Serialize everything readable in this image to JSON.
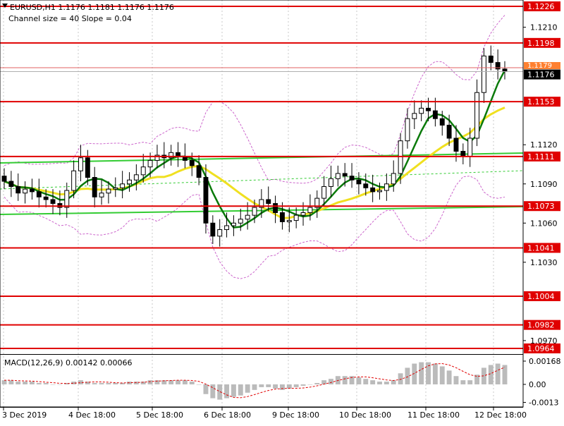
{
  "chart_data": {
    "type": "candlestick",
    "symbol_header": "EURUSD,H1  1.1176 1.1181 1.1176 1.1176",
    "indicator_header": "Channel size = 40 Slope = 0.04",
    "macd_header": "MACD(12,26,9) 0.00142 0.00066",
    "price_axis": {
      "ylim": [
        1.0964,
        1.1226
      ],
      "tick_labels": [
        "1.1210",
        "1.1120",
        "1.1090",
        "1.1060",
        "1.1030",
        "1.0970"
      ],
      "tick_values": [
        1.121,
        1.112,
        1.109,
        1.106,
        1.103,
        1.097
      ]
    },
    "macd_axis": {
      "ylim": [
        -0.0013,
        0.00168
      ],
      "tick_labels": [
        "0.00168",
        "0.00",
        "-0.0013"
      ],
      "tick_values": [
        0.00168,
        0.0,
        -0.0013
      ]
    },
    "time_axis": {
      "labels": [
        "3 Dec 2019",
        "4 Dec 18:00",
        "5 Dec 18:00",
        "6 Dec 18:00",
        "9 Dec 18:00",
        "10 Dec 18:00",
        "11 Dec 18:00",
        "12 Dec 18:00"
      ]
    },
    "levels": [
      {
        "value": 1.1226,
        "label": "1.1226"
      },
      {
        "value": 1.1198,
        "label": "1.1198"
      },
      {
        "value": 1.1153,
        "label": "1.1153"
      },
      {
        "value": 1.1111,
        "label": "1.1111"
      },
      {
        "value": 1.1073,
        "label": "1.1073"
      },
      {
        "value": 1.1041,
        "label": "1.1041"
      },
      {
        "value": 1.1004,
        "label": "1.1004"
      },
      {
        "value": 1.0982,
        "label": "1.0982"
      },
      {
        "value": 1.0964,
        "label": "1.0964"
      }
    ],
    "current_price": {
      "value": 1.1176,
      "label": "1.1176"
    },
    "ask_price": {
      "value": 1.1179,
      "label": "1.1179"
    },
    "close_path": [
      1.1092,
      1.1088,
      1.1083,
      1.1086,
      1.1084,
      1.108,
      1.1078,
      1.1075,
      1.1072,
      1.1085,
      1.11,
      1.111,
      1.1095,
      1.108,
      1.1083,
      1.1086,
      1.1087,
      1.109,
      1.1093,
      1.1097,
      1.1103,
      1.1108,
      1.1112,
      1.111,
      1.1114,
      1.1111,
      1.1108,
      1.1104,
      1.1095,
      1.106,
      1.105,
      1.1055,
      1.1058,
      1.106,
      1.1063,
      1.1066,
      1.1072,
      1.1078,
      1.1075,
      1.1068,
      1.1061,
      1.1062,
      1.1066,
      1.1068,
      1.1072,
      1.1079,
      1.1088,
      1.1094,
      1.1098,
      1.1096,
      1.1093,
      1.109,
      1.1087,
      1.1084,
      1.1085,
      1.109,
      1.1098,
      1.1123,
      1.114,
      1.1144,
      1.1148,
      1.1146,
      1.114,
      1.1135,
      1.1125,
      1.1115,
      1.1111,
      1.1125,
      1.116,
      1.1188,
      1.1183,
      1.1178,
      1.1176
    ],
    "series": [
      {
        "name": "",
        "color": "#0a7a0a",
        "kind": "moving-average"
      },
      {
        "name": "",
        "color": "#f0e020",
        "kind": "moving-average"
      },
      {
        "name": "",
        "color": "#cc66cc",
        "kind": "bollinger-band"
      },
      {
        "name": "",
        "color": "#33cc33",
        "kind": "channel-line"
      }
    ],
    "macd_histogram": [
      0.0003,
      0.0003,
      0.0002,
      0.0002,
      0.0002,
      0.0001,
      0.0001,
      0.0,
      0.0,
      0.0001,
      0.0002,
      0.0003,
      0.0002,
      0.0001,
      0.0001,
      0.0001,
      0.0001,
      0.0001,
      0.0002,
      0.0002,
      0.0002,
      0.0003,
      0.0003,
      0.0003,
      0.0003,
      0.0003,
      0.0003,
      0.0002,
      0.0,
      -0.0007,
      -0.001,
      -0.0011,
      -0.001,
      -0.0009,
      -0.0008,
      -0.0006,
      -0.0004,
      -0.0002,
      -0.0002,
      -0.0003,
      -0.0004,
      -0.0003,
      -0.0002,
      -0.0001,
      0.0,
      0.0001,
      0.0003,
      0.0004,
      0.0006,
      0.0006,
      0.0006,
      0.0005,
      0.0004,
      0.0003,
      0.0002,
      0.0002,
      0.0003,
      0.0008,
      0.0012,
      0.0015,
      0.0016,
      0.0016,
      0.0015,
      0.0013,
      0.001,
      0.0006,
      0.0003,
      0.0003,
      0.0007,
      0.0012,
      0.0014,
      0.0015,
      0.0014
    ],
    "colors": {
      "level": "#e00000",
      "histogram": "#bbbbbb",
      "signal": "#e00000",
      "grid": "#c8c8c8",
      "text": "#000000"
    }
  }
}
